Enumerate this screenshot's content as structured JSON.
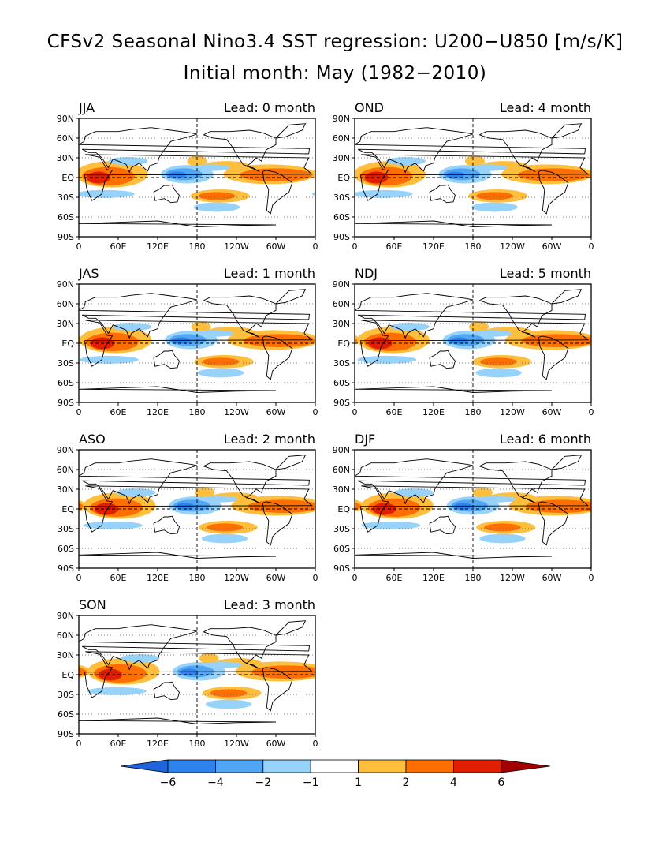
{
  "title": "CFSv2 Seasonal Nino3.4 SST regression: U200−U850 [m/s/K]",
  "subtitle": "Initial month: May (1982−2010)",
  "lon_ticks": [
    "0",
    "60E",
    "120E",
    "180",
    "120W",
    "60W",
    "0"
  ],
  "lat_ticks": [
    "90N",
    "60N",
    "30N",
    "EQ",
    "30S",
    "60S",
    "90S"
  ],
  "panels": [
    {
      "season": "JJA",
      "lead": "Lead: 0 month"
    },
    {
      "season": "OND",
      "lead": "Lead: 4 month"
    },
    {
      "season": "JAS",
      "lead": "Lead: 1 month"
    },
    {
      "season": "NDJ",
      "lead": "Lead: 5 month"
    },
    {
      "season": "ASO",
      "lead": "Lead: 2 month"
    },
    {
      "season": "DJF",
      "lead": "Lead: 6 month"
    },
    {
      "season": "SON",
      "lead": "Lead: 3 month"
    }
  ],
  "colorbar": {
    "labels": [
      "−6",
      "−4",
      "−2",
      "−1",
      "1",
      "2",
      "4",
      "6"
    ],
    "colors": [
      "#1e64dc",
      "#2d82eb",
      "#50a5f5",
      "#96d2fa",
      "#ffffff",
      "#ffbe3c",
      "#ff6e00",
      "#e11e00",
      "#a50000"
    ]
  },
  "colors": {
    "neg_strong": "#2d82eb",
    "neg_mid": "#50a5f5",
    "neg_weak": "#96d2fa",
    "pos_weak": "#ffbe3c",
    "pos_mid": "#ff6e00",
    "pos_strong": "#e11e00"
  }
}
